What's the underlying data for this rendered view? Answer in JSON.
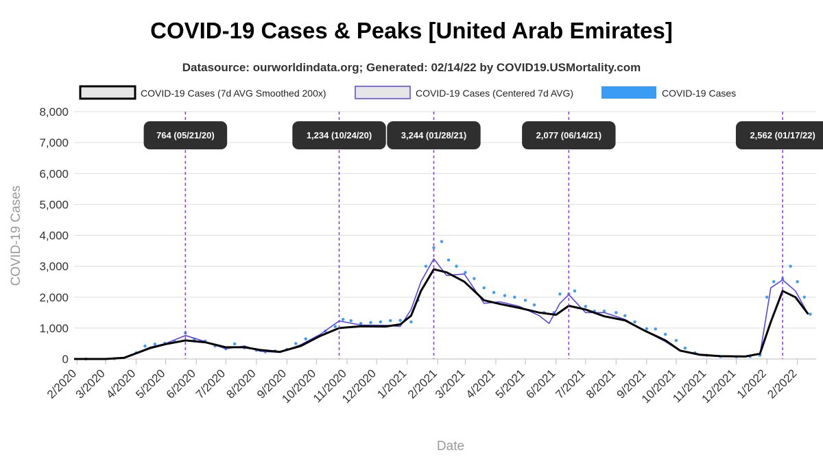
{
  "chart_data": {
    "type": "line",
    "title": "COVID-19 Cases & Peaks [United Arab Emirates]",
    "subtitle": "Datasource: ourworldindata.org; Generated: 02/14/22 by COVID19.USMortality.com",
    "xlabel": "Date",
    "ylabel": "COVID-19 Cases",
    "ylim": [
      0,
      8000
    ],
    "yticks": [
      0,
      1000,
      2000,
      3000,
      4000,
      5000,
      6000,
      7000,
      8000
    ],
    "ytick_labels": [
      "0",
      "1,000",
      "2,000",
      "3,000",
      "4,000",
      "5,000",
      "6,000",
      "7,000",
      "8,000"
    ],
    "xlim": [
      "2020-01-29",
      "2022-02-20"
    ],
    "xticks": [
      "2020-02-01",
      "2020-03-01",
      "2020-04-01",
      "2020-05-01",
      "2020-06-01",
      "2020-07-01",
      "2020-08-01",
      "2020-09-01",
      "2020-10-01",
      "2020-11-01",
      "2020-12-01",
      "2021-01-01",
      "2021-02-01",
      "2021-03-01",
      "2021-04-01",
      "2021-05-01",
      "2021-06-01",
      "2021-07-01",
      "2021-08-01",
      "2021-09-01",
      "2021-10-01",
      "2021-11-01",
      "2021-12-01",
      "2022-01-01",
      "2022-02-01"
    ],
    "xtick_labels": [
      "2/2020",
      "3/2020",
      "4/2020",
      "5/2020",
      "6/2020",
      "7/2020",
      "8/2020",
      "9/2020",
      "10/2020",
      "11/2020",
      "12/2020",
      "1/2021",
      "2/2021",
      "3/2021",
      "4/2021",
      "5/2021",
      "6/2021",
      "7/2021",
      "8/2021",
      "9/2021",
      "10/2021",
      "11/2021",
      "12/2021",
      "1/2022",
      "2/2022"
    ],
    "grid": true,
    "legend_position": "top",
    "series": [
      {
        "name": "COVID-19 Cases (7d AVG Smoothed 200x)",
        "style": "line",
        "color": "#000000",
        "x": [
          "2020-01-29",
          "2020-03-01",
          "2020-03-20",
          "2020-04-15",
          "2020-05-01",
          "2020-05-21",
          "2020-06-10",
          "2020-07-01",
          "2020-07-20",
          "2020-08-05",
          "2020-08-25",
          "2020-09-15",
          "2020-10-05",
          "2020-10-24",
          "2020-11-15",
          "2020-12-10",
          "2020-12-25",
          "2021-01-05",
          "2021-01-15",
          "2021-01-28",
          "2021-02-10",
          "2021-02-28",
          "2021-03-20",
          "2021-04-05",
          "2021-04-25",
          "2021-05-15",
          "2021-06-01",
          "2021-06-14",
          "2021-07-01",
          "2021-07-20",
          "2021-08-10",
          "2021-08-31",
          "2021-09-20",
          "2021-10-05",
          "2021-10-25",
          "2021-11-15",
          "2021-12-10",
          "2021-12-25",
          "2022-01-05",
          "2022-01-17",
          "2022-01-30",
          "2022-02-12"
        ],
        "values": [
          0,
          0,
          40,
          350,
          480,
          600,
          540,
          380,
          380,
          290,
          230,
          420,
          750,
          1000,
          1060,
          1050,
          1120,
          1400,
          2200,
          2900,
          2800,
          2500,
          1900,
          1780,
          1650,
          1500,
          1430,
          1720,
          1600,
          1380,
          1250,
          900,
          600,
          270,
          140,
          90,
          80,
          170,
          1200,
          2200,
          2000,
          1450
        ]
      },
      {
        "name": "COVID-19 Cases (Centered 7d AVG)",
        "style": "line",
        "color": "#5544ee",
        "x": [
          "2020-01-29",
          "2020-03-01",
          "2020-03-20",
          "2020-04-15",
          "2020-05-01",
          "2020-05-21",
          "2020-06-10",
          "2020-07-01",
          "2020-07-20",
          "2020-08-05",
          "2020-08-25",
          "2020-09-15",
          "2020-10-05",
          "2020-10-24",
          "2020-11-15",
          "2020-12-10",
          "2020-12-25",
          "2021-01-05",
          "2021-01-15",
          "2021-01-28",
          "2021-02-10",
          "2021-02-28",
          "2021-03-20",
          "2021-04-05",
          "2021-04-25",
          "2021-05-15",
          "2021-05-25",
          "2021-06-05",
          "2021-06-14",
          "2021-07-01",
          "2021-07-20",
          "2021-08-10",
          "2021-08-31",
          "2021-09-20",
          "2021-10-05",
          "2021-10-25",
          "2021-11-15",
          "2021-12-10",
          "2021-12-25",
          "2022-01-05",
          "2022-01-17",
          "2022-01-30",
          "2022-02-12"
        ],
        "values": [
          0,
          0,
          30,
          380,
          500,
          760,
          560,
          330,
          420,
          250,
          210,
          460,
          800,
          1230,
          1100,
          1090,
          1050,
          1600,
          2500,
          3240,
          2700,
          2750,
          1800,
          1850,
          1700,
          1400,
          1150,
          1800,
          2080,
          1500,
          1500,
          1280,
          900,
          560,
          260,
          120,
          80,
          80,
          150,
          2300,
          2560,
          2200,
          1450
        ]
      },
      {
        "name": "COVID-19 Cases",
        "style": "scatter",
        "color": "#3a9cf5",
        "x": [
          "2020-02-10",
          "2020-03-10",
          "2020-04-01",
          "2020-04-10",
          "2020-04-20",
          "2020-04-30",
          "2020-05-10",
          "2020-05-21",
          "2020-05-30",
          "2020-06-10",
          "2020-06-20",
          "2020-07-01",
          "2020-07-10",
          "2020-07-20",
          "2020-08-01",
          "2020-08-10",
          "2020-08-20",
          "2020-09-01",
          "2020-09-10",
          "2020-09-20",
          "2020-10-01",
          "2020-10-10",
          "2020-10-20",
          "2020-10-28",
          "2020-11-05",
          "2020-11-15",
          "2020-11-25",
          "2020-12-05",
          "2020-12-15",
          "2020-12-25",
          "2021-01-05",
          "2021-01-12",
          "2021-01-20",
          "2021-01-28",
          "2021-02-05",
          "2021-02-12",
          "2021-02-20",
          "2021-03-01",
          "2021-03-10",
          "2021-03-20",
          "2021-03-30",
          "2021-04-10",
          "2021-04-20",
          "2021-05-01",
          "2021-05-10",
          "2021-05-20",
          "2021-05-30",
          "2021-06-05",
          "2021-06-14",
          "2021-06-20",
          "2021-07-01",
          "2021-07-10",
          "2021-07-20",
          "2021-08-01",
          "2021-08-10",
          "2021-08-20",
          "2021-09-01",
          "2021-09-10",
          "2021-09-20",
          "2021-10-01",
          "2021-10-10",
          "2021-10-20",
          "2021-11-01",
          "2021-11-15",
          "2021-12-01",
          "2021-12-15",
          "2021-12-25",
          "2022-01-01",
          "2022-01-08",
          "2022-01-17",
          "2022-01-25",
          "2022-02-01",
          "2022-02-08",
          "2022-02-14"
        ],
        "values": [
          0,
          10,
          200,
          420,
          480,
          510,
          560,
          840,
          630,
          580,
          420,
          330,
          490,
          360,
          280,
          230,
          260,
          310,
          500,
          650,
          700,
          900,
          1050,
          1280,
          1240,
          1150,
          1180,
          1200,
          1240,
          1250,
          1200,
          1900,
          3000,
          3600,
          3800,
          3200,
          3000,
          2800,
          2600,
          2300,
          2150,
          2050,
          2000,
          1900,
          1750,
          1500,
          1500,
          2100,
          2100,
          2200,
          1700,
          1550,
          1550,
          1500,
          1400,
          1200,
          980,
          970,
          800,
          600,
          350,
          200,
          120,
          80,
          70,
          80,
          120,
          2000,
          2500,
          2600,
          3000,
          2500,
          2000,
          1450
        ]
      }
    ],
    "peaks": [
      {
        "date": "2020-05-21",
        "label": "764 (05/21/20)"
      },
      {
        "date": "2020-10-24",
        "label": "1,234 (10/24/20)"
      },
      {
        "date": "2021-01-28",
        "label": "3,244 (01/28/21)"
      },
      {
        "date": "2021-06-14",
        "label": "2,077 (06/14/21)"
      },
      {
        "date": "2022-01-17",
        "label": "2,562 (01/17/22)"
      }
    ],
    "colors": {
      "smoothed": "#000000",
      "centered": "#5544ee",
      "cases": "#3a9cf5",
      "peak_line": "#9933ee",
      "peak_box": "#2f2f2f",
      "grid": "#dddddd"
    }
  }
}
